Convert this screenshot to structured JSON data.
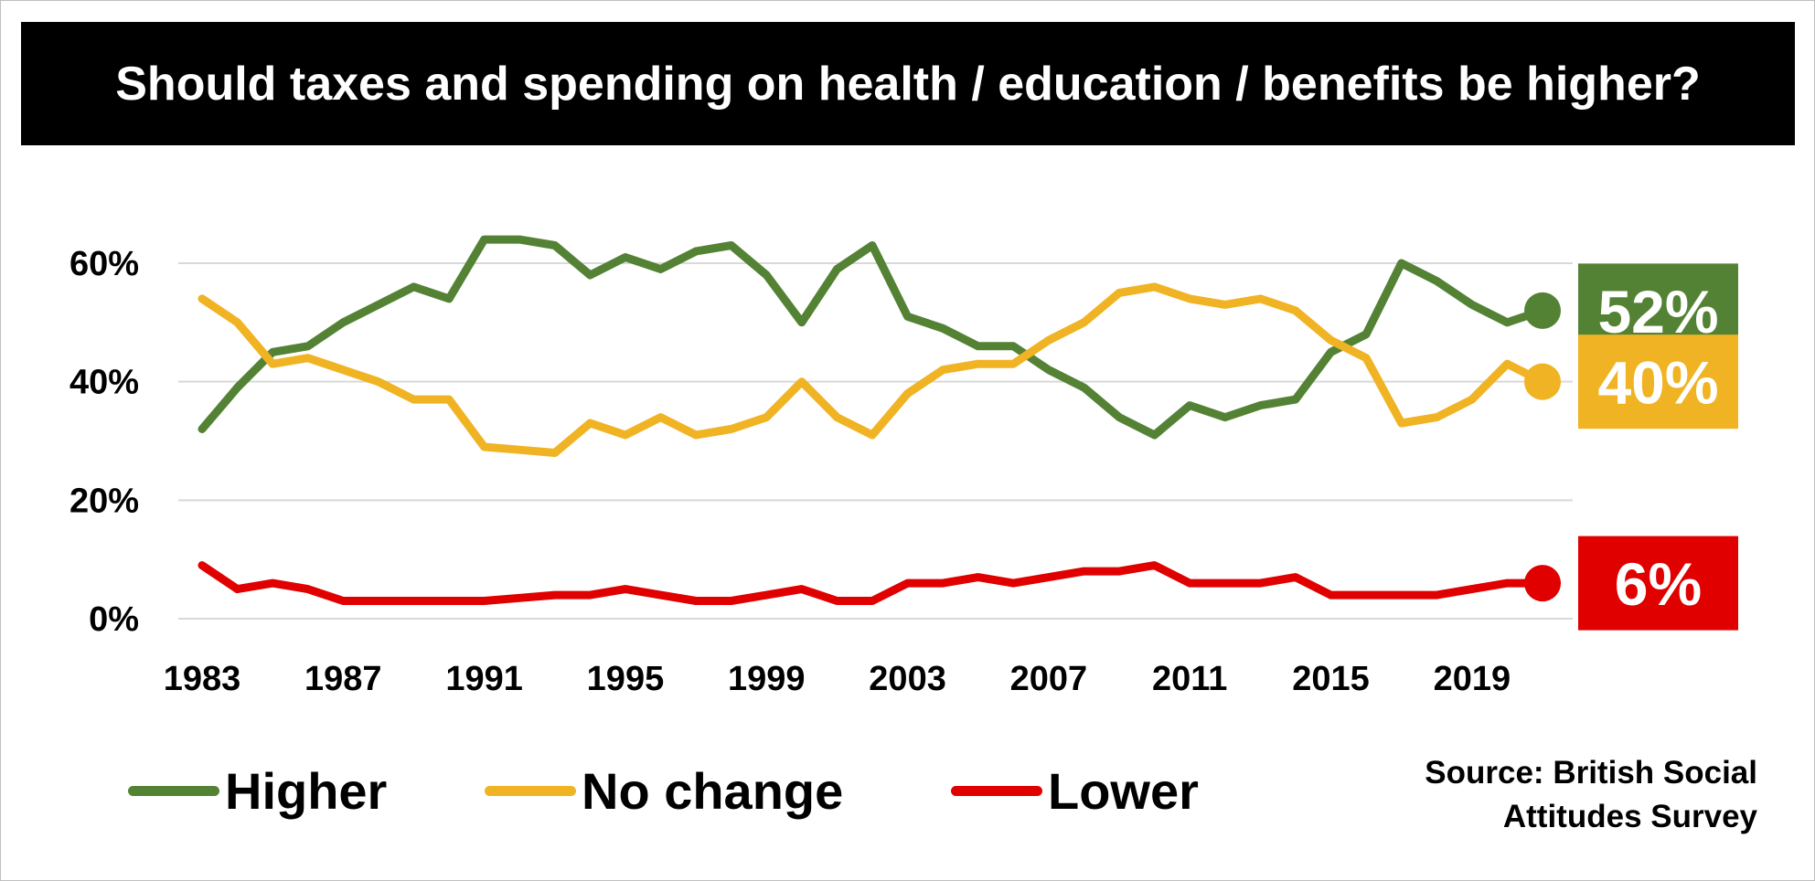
{
  "title": "Should taxes and spending on health / education / benefits be higher?",
  "source": {
    "line1": "Source: British Social",
    "line2": "Attitudes Survey"
  },
  "chart_data": {
    "type": "line",
    "title": "Should taxes and spending on health / education / benefits be higher?",
    "xlabel": "",
    "ylabel": "",
    "x": [
      1983,
      1984,
      1985,
      1986,
      1987,
      1988,
      1989,
      1990,
      1991,
      1992,
      1993,
      1994,
      1995,
      1996,
      1997,
      1998,
      1999,
      2000,
      2001,
      2002,
      2003,
      2004,
      2005,
      2006,
      2007,
      2008,
      2009,
      2010,
      2011,
      2012,
      2013,
      2014,
      2015,
      2016,
      2017,
      2018,
      2019,
      2020,
      2021
    ],
    "x_ticks": [
      "1983",
      "1987",
      "1991",
      "1995",
      "1999",
      "2003",
      "2007",
      "2011",
      "2015",
      "2019"
    ],
    "y_ticks": [
      "0%",
      "20%",
      "40%",
      "60%"
    ],
    "ylim": [
      0,
      70
    ],
    "grid": true,
    "legend_position": "bottom",
    "series": [
      {
        "name": "Higher",
        "color": "#548235",
        "end_label": "52%",
        "values": [
          32,
          39,
          45,
          46,
          50,
          53,
          56,
          54,
          64,
          64,
          63,
          58,
          61,
          59,
          62,
          63,
          58,
          50,
          59,
          63,
          51,
          49,
          46,
          46,
          42,
          39,
          34,
          31,
          36,
          34,
          36,
          37,
          45,
          48,
          60,
          57,
          53,
          50,
          52
        ]
      },
      {
        "name": "No change",
        "color": "#F0B323",
        "end_label": "40%",
        "values": [
          54,
          50,
          43,
          44,
          42,
          40,
          37,
          37,
          29,
          28.5,
          28,
          33,
          31,
          34,
          31,
          32,
          34,
          40,
          34,
          31,
          38,
          42,
          43,
          43,
          47,
          50,
          55,
          56,
          54,
          53,
          54,
          52,
          47,
          44,
          33,
          34,
          37,
          43,
          40
        ]
      },
      {
        "name": "Lower",
        "color": "#E00000",
        "end_label": "6%",
        "values": [
          9,
          5,
          6,
          5,
          3,
          3,
          3,
          3,
          3,
          3.5,
          4,
          4,
          5,
          4,
          3,
          3,
          4,
          5,
          3,
          3,
          6,
          6,
          7,
          6,
          7,
          8,
          8,
          9,
          6,
          6,
          6,
          7,
          4,
          4,
          4,
          4,
          5,
          6,
          6
        ]
      }
    ]
  }
}
